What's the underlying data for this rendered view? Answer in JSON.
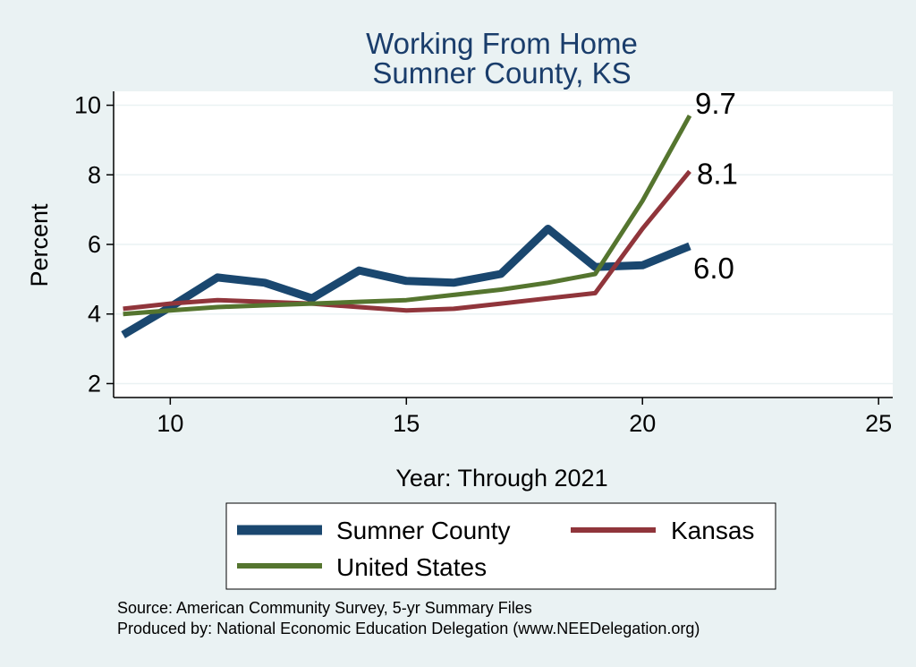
{
  "chart_data": {
    "type": "line",
    "title": "Working From Home",
    "subtitle": "Sumner County, KS",
    "xlabel": "Year: Through 2021",
    "ylabel": "Percent",
    "xlim": [
      8.8,
      25.3
    ],
    "ylim": [
      1.6,
      10.4
    ],
    "xticks": [
      10,
      15,
      20,
      25
    ],
    "yticks": [
      2,
      4,
      6,
      8,
      10
    ],
    "grid": true,
    "legend_position": "bottom",
    "x": [
      9,
      10,
      11,
      12,
      13,
      14,
      15,
      16,
      17,
      18,
      19,
      20,
      21
    ],
    "series": [
      {
        "name": "Sumner County",
        "color": "#1a476f",
        "width": 9,
        "values": [
          3.4,
          4.2,
          5.05,
          4.9,
          4.45,
          5.25,
          4.95,
          4.9,
          5.15,
          6.45,
          5.35,
          5.4,
          5.95
        ],
        "end_label": "6.0"
      },
      {
        "name": "Kansas",
        "color": "#90353b",
        "width": 5,
        "values": [
          4.15,
          4.3,
          4.4,
          4.35,
          4.3,
          4.2,
          4.1,
          4.15,
          4.3,
          4.45,
          4.6,
          6.45,
          8.1
        ],
        "end_label": "8.1"
      },
      {
        "name": "United States",
        "color": "#55752f",
        "width": 5,
        "values": [
          4.0,
          4.1,
          4.2,
          4.25,
          4.3,
          4.35,
          4.4,
          4.55,
          4.7,
          4.9,
          5.15,
          7.25,
          9.7
        ],
        "end_label": "9.7"
      }
    ],
    "notes": [
      "Source: American Community Survey, 5-yr Summary Files",
      "Produced by: National Economic Education Delegation (www.NEEDelegation.org)"
    ]
  }
}
